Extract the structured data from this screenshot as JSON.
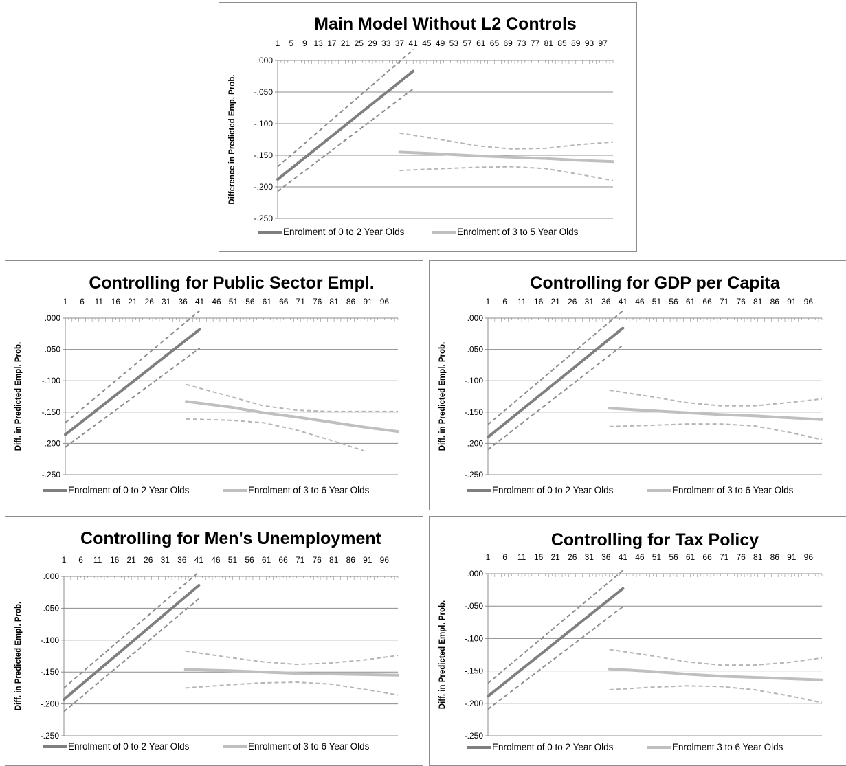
{
  "chart_data": [
    {
      "type": "line",
      "title": "Main Model Without L2 Controls",
      "ylabel": "Difference in Predicted Emp. Prob.",
      "x_ticks": [
        "1",
        "5",
        "9",
        "13",
        "17",
        "21",
        "25",
        "29",
        "33",
        "37",
        "41",
        "45",
        "49",
        "53",
        "57",
        "61",
        "65",
        "69",
        "73",
        "77",
        "81",
        "85",
        "89",
        "93",
        "97"
      ],
      "x_axis_position": "top",
      "xlim": [
        1,
        100
      ],
      "y_ticks": [
        ".000",
        "-.050",
        "-.100",
        "-.150",
        "-.200",
        "-.250"
      ],
      "ylim": [
        -0.25,
        0
      ],
      "grid": true,
      "legend_position": "bottom",
      "legend": [
        "Enrolment of 0 to 2 Year Olds",
        "Enrolment of 3 to 5 Year Olds"
      ],
      "series": [
        {
          "name": "Enrolment of 0 to 2 Year Olds",
          "color": "#7f7f7f",
          "x": [
            1,
            41
          ],
          "y": [
            -0.188,
            -0.017
          ],
          "ci_lower": [
            -0.207,
            -0.045
          ],
          "ci_upper": [
            -0.168,
            0.017
          ]
        },
        {
          "name": "Enrolment of 3 to 5 Year Olds",
          "color": "#bfbfbf",
          "x": [
            37,
            50,
            60,
            70,
            80,
            90,
            100
          ],
          "y": [
            -0.145,
            -0.148,
            -0.151,
            -0.153,
            -0.155,
            -0.158,
            -0.16
          ],
          "ci_lower": [
            -0.174,
            -0.171,
            -0.169,
            -0.168,
            -0.171,
            -0.18,
            -0.19
          ],
          "ci_upper": [
            -0.115,
            -0.126,
            -0.135,
            -0.14,
            -0.139,
            -0.133,
            -0.129
          ]
        }
      ]
    },
    {
      "type": "line",
      "title": "Controlling for Public Sector Empl.",
      "ylabel": "Diff. in Predicted Empl. Prob.",
      "x_ticks": [
        "1",
        "6",
        "11",
        "16",
        "21",
        "26",
        "31",
        "36",
        "41",
        "46",
        "51",
        "56",
        "61",
        "66",
        "71",
        "76",
        "81",
        "86",
        "91",
        "96"
      ],
      "x_axis_position": "top",
      "xlim": [
        1,
        100
      ],
      "y_ticks": [
        ".000",
        "-.050",
        "-.100",
        "-.150",
        "-.200",
        "-.250"
      ],
      "ylim": [
        -0.25,
        0
      ],
      "grid": true,
      "legend_position": "bottom",
      "legend": [
        "Enrolment of 0 to 2 Year Olds",
        "Enrolment of 3 to 6 Year Olds"
      ],
      "series": [
        {
          "name": "Enrolment of 0 to 2 Year Olds",
          "color": "#7f7f7f",
          "x": [
            1,
            41
          ],
          "y": [
            -0.186,
            -0.018
          ],
          "ci_lower": [
            -0.206,
            -0.048
          ],
          "ci_upper": [
            -0.167,
            0.012
          ]
        },
        {
          "name": "Enrolment of 3 to 6 Year Olds",
          "color": "#bfbfbf",
          "x": [
            37,
            50,
            60,
            70,
            80,
            90,
            100
          ],
          "y": [
            -0.133,
            -0.142,
            -0.151,
            -0.158,
            -0.166,
            -0.174,
            -0.181
          ],
          "ci_lower": [
            -0.161,
            -0.163,
            -0.167,
            -0.179,
            -0.195,
            -0.212,
            null
          ],
          "ci_upper": [
            -0.106,
            -0.125,
            -0.14,
            -0.147,
            -0.149,
            -0.149,
            -0.149
          ]
        }
      ]
    },
    {
      "type": "line",
      "title": "Controlling for GDP per Capita",
      "ylabel": "Diff. in Predicted Empl. Prob.",
      "x_ticks": [
        "1",
        "6",
        "11",
        "16",
        "21",
        "26",
        "31",
        "36",
        "41",
        "46",
        "51",
        "56",
        "61",
        "66",
        "71",
        "76",
        "81",
        "86",
        "91",
        "96"
      ],
      "x_axis_position": "top",
      "xlim": [
        1,
        100
      ],
      "y_ticks": [
        ".000",
        "-.050",
        "-.100",
        "-.150",
        "-.200",
        "-.250"
      ],
      "ylim": [
        -0.25,
        0
      ],
      "grid": true,
      "legend_position": "bottom",
      "legend": [
        "Enrolment of 0 to 2 Year Olds",
        "Enrolment of 3 to 6 Year Olds"
      ],
      "series": [
        {
          "name": "Enrolment of 0 to 2 Year Olds",
          "color": "#7f7f7f",
          "x": [
            1,
            41
          ],
          "y": [
            -0.19,
            -0.016
          ],
          "ci_lower": [
            -0.21,
            -0.043
          ],
          "ci_upper": [
            -0.17,
            0.012
          ]
        },
        {
          "name": "Enrolment of 3 to 6 Year Olds",
          "color": "#bfbfbf",
          "x": [
            37,
            50,
            60,
            70,
            80,
            90,
            100
          ],
          "y": [
            -0.144,
            -0.148,
            -0.151,
            -0.154,
            -0.156,
            -0.159,
            -0.162
          ],
          "ci_lower": [
            -0.173,
            -0.171,
            -0.169,
            -0.169,
            -0.172,
            -0.182,
            -0.194
          ],
          "ci_upper": [
            -0.115,
            -0.126,
            -0.135,
            -0.14,
            -0.14,
            -0.135,
            -0.129
          ]
        }
      ]
    },
    {
      "type": "line",
      "title": "Controlling for Men's Unemployment",
      "ylabel": "Diff. in Predicted Empl. Prob.",
      "x_ticks": [
        "1",
        "6",
        "11",
        "16",
        "21",
        "26",
        "31",
        "36",
        "41",
        "46",
        "51",
        "56",
        "61",
        "66",
        "71",
        "76",
        "81",
        "86",
        "91",
        "96"
      ],
      "x_axis_position": "top",
      "xlim": [
        1,
        100
      ],
      "y_ticks": [
        ".000",
        "-.050",
        "-.100",
        "-.150",
        "-.200",
        "-.250"
      ],
      "ylim": [
        -0.25,
        0
      ],
      "grid": true,
      "legend_position": "bottom",
      "legend": [
        "Enrolment of 0 to 2 Year Olds",
        "Enrolment of 3 to 6 Year Olds"
      ],
      "series": [
        {
          "name": "Enrolment of 0 to 2 Year Olds",
          "color": "#7f7f7f",
          "x": [
            1,
            41
          ],
          "y": [
            -0.193,
            -0.014
          ],
          "ci_lower": [
            -0.212,
            -0.035
          ],
          "ci_upper": [
            -0.175,
            0.007
          ]
        },
        {
          "name": "Enrolment of 3 to 6 Year Olds",
          "color": "#bfbfbf",
          "x": [
            37,
            50,
            60,
            70,
            80,
            90,
            100
          ],
          "y": [
            -0.146,
            -0.148,
            -0.15,
            -0.152,
            -0.153,
            -0.154,
            -0.155
          ],
          "ci_lower": [
            -0.175,
            -0.17,
            -0.167,
            -0.166,
            -0.169,
            -0.177,
            -0.186
          ],
          "ci_upper": [
            -0.117,
            -0.127,
            -0.134,
            -0.138,
            -0.136,
            -0.131,
            -0.124
          ]
        }
      ]
    },
    {
      "type": "line",
      "title": "Controlling for Tax Policy",
      "ylabel": "Diff. in Predicted Empl. Prob.",
      "x_ticks": [
        "1",
        "6",
        "11",
        "16",
        "21",
        "26",
        "31",
        "36",
        "41",
        "46",
        "51",
        "56",
        "61",
        "66",
        "71",
        "76",
        "81",
        "86",
        "91",
        "96"
      ],
      "x_axis_position": "top",
      "xlim": [
        1,
        100
      ],
      "y_ticks": [
        ".000",
        "-.050",
        "-.100",
        "-.150",
        "-.200",
        "-.250"
      ],
      "ylim": [
        -0.25,
        0
      ],
      "grid": true,
      "legend_position": "bottom",
      "legend": [
        "Enrolment of 0 to 2 Year Olds",
        "Enrolment 3 to 6 Year Olds"
      ],
      "series": [
        {
          "name": "Enrolment of 0 to 2 Year Olds",
          "color": "#7f7f7f",
          "x": [
            1,
            41
          ],
          "y": [
            -0.189,
            -0.023
          ],
          "ci_lower": [
            -0.209,
            -0.051
          ],
          "ci_upper": [
            -0.169,
            0.005
          ]
        },
        {
          "name": "Enrolment 3 to 6 Year Olds",
          "color": "#bfbfbf",
          "x": [
            37,
            50,
            60,
            70,
            80,
            90,
            100
          ],
          "y": [
            -0.147,
            -0.151,
            -0.155,
            -0.158,
            -0.16,
            -0.162,
            -0.164
          ],
          "ci_lower": [
            -0.179,
            -0.175,
            -0.173,
            -0.174,
            -0.179,
            -0.188,
            -0.199
          ],
          "ci_upper": [
            -0.117,
            -0.127,
            -0.136,
            -0.141,
            -0.141,
            -0.137,
            -0.13
          ]
        }
      ]
    }
  ]
}
